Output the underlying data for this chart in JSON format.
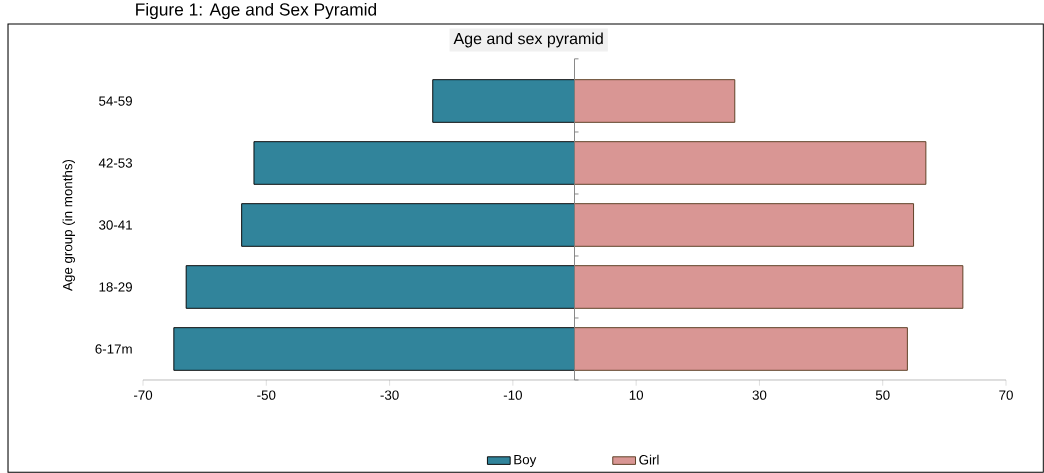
{
  "chart_data": {
    "type": "bar",
    "orientation": "horizontal",
    "title": "Age and sex pyramid",
    "ylabel": "Age group (in months)",
    "annotations": [
      "Figure 1: Age and Sex Pyramid"
    ],
    "categories": [
      "54-59",
      "42-53",
      "30-41",
      "18-29",
      "6-17m"
    ],
    "series": [
      {
        "name": "Boy",
        "color": "#31849b",
        "values": [
          -23,
          -52,
          -54,
          -63,
          -65
        ]
      },
      {
        "name": "Girl",
        "color": "#d99694",
        "values": [
          26,
          57,
          55,
          63,
          54
        ]
      }
    ],
    "xlim": [
      -70,
      70
    ],
    "xticks": [
      -70,
      -50,
      -30,
      -10,
      10,
      30,
      50,
      70
    ],
    "stacked": true,
    "grid": false,
    "legend": "bottom"
  }
}
